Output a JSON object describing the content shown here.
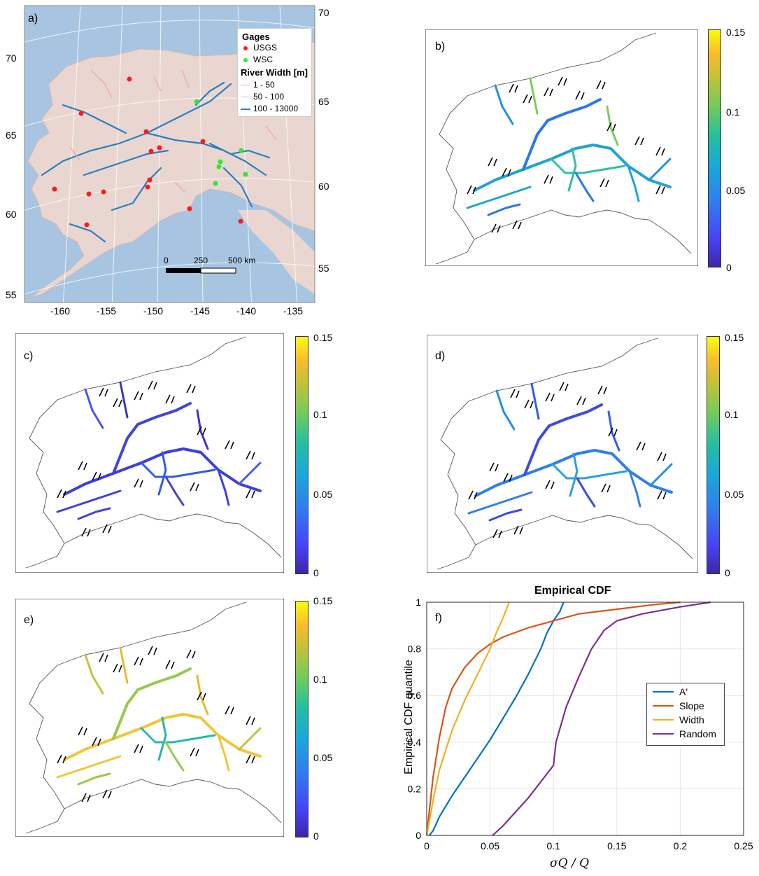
{
  "panel_a": {
    "label": "a)",
    "legend": {
      "gages_title": "Gages",
      "usgs": "USGS",
      "wsc": "WSC",
      "width_title": "River Width [m]",
      "w1": "1 - 50",
      "w2": "50 - 100",
      "w3": "100 - 13000"
    },
    "scalebar": {
      "t0": "0",
      "t1": "250",
      "t2": "500 km"
    },
    "lat_left": [
      "70",
      "65",
      "60",
      "55"
    ],
    "lat_right": [
      "70",
      "65",
      "60",
      "55"
    ],
    "lon_bottom": [
      "-160",
      "-155",
      "-150",
      "-145",
      "-140",
      "-135"
    ],
    "colors": {
      "usgs": "#ff1a1a",
      "wsc": "#33e633",
      "water": "#a6c4e0",
      "land": "#e9d4cf"
    }
  },
  "panel_b": {
    "label": "b)"
  },
  "panel_c": {
    "label": "c)"
  },
  "panel_d": {
    "label": "d)"
  },
  "panel_e": {
    "label": "e)"
  },
  "colorbar": {
    "ticks": [
      "0.15",
      "0.1",
      "0.05",
      "0"
    ]
  },
  "panel_f": {
    "label": "f)",
    "chart_data": {
      "type": "line",
      "title": "Empirical CDF",
      "xlabel": "σQ / Q",
      "ylabel": "Empirical CDF quantile",
      "xlim": [
        0,
        0.25
      ],
      "ylim": [
        0,
        1
      ],
      "xticks": [
        "0",
        "0.05",
        "0.1",
        "0.15",
        "0.2",
        "0.25"
      ],
      "yticks": [
        "0",
        "0.2",
        "0.4",
        "0.6",
        "0.8",
        "1"
      ],
      "grid": true,
      "legend_position": "center-right",
      "series": [
        {
          "name": "A'",
          "color": "#0072bd",
          "points": [
            [
              0.002,
              0
            ],
            [
              0.005,
              0.02
            ],
            [
              0.01,
              0.08
            ],
            [
              0.02,
              0.17
            ],
            [
              0.03,
              0.25
            ],
            [
              0.04,
              0.33
            ],
            [
              0.05,
              0.41
            ],
            [
              0.06,
              0.5
            ],
            [
              0.07,
              0.59
            ],
            [
              0.08,
              0.69
            ],
            [
              0.09,
              0.8
            ],
            [
              0.095,
              0.87
            ],
            [
              0.1,
              0.92
            ],
            [
              0.105,
              0.96
            ],
            [
              0.108,
              1.0
            ]
          ]
        },
        {
          "name": "Slope",
          "color": "#d95319",
          "points": [
            [
              0,
              0
            ],
            [
              0.002,
              0.1
            ],
            [
              0.005,
              0.25
            ],
            [
              0.01,
              0.42
            ],
            [
              0.015,
              0.55
            ],
            [
              0.02,
              0.63
            ],
            [
              0.03,
              0.72
            ],
            [
              0.04,
              0.78
            ],
            [
              0.05,
              0.82
            ],
            [
              0.06,
              0.85
            ],
            [
              0.08,
              0.89
            ],
            [
              0.1,
              0.92
            ],
            [
              0.12,
              0.95
            ],
            [
              0.15,
              0.97
            ],
            [
              0.18,
              0.99
            ],
            [
              0.2,
              1.0
            ]
          ]
        },
        {
          "name": "Width",
          "color": "#edb120",
          "points": [
            [
              0,
              0
            ],
            [
              0.005,
              0.15
            ],
            [
              0.01,
              0.28
            ],
            [
              0.02,
              0.45
            ],
            [
              0.03,
              0.58
            ],
            [
              0.04,
              0.69
            ],
            [
              0.05,
              0.8
            ],
            [
              0.055,
              0.87
            ],
            [
              0.06,
              0.93
            ],
            [
              0.065,
              1.0
            ]
          ]
        },
        {
          "name": "Random",
          "color": "#7e2f8e",
          "points": [
            [
              0.052,
              0
            ],
            [
              0.06,
              0.04
            ],
            [
              0.07,
              0.1
            ],
            [
              0.08,
              0.16
            ],
            [
              0.09,
              0.23
            ],
            [
              0.1,
              0.3
            ],
            [
              0.102,
              0.4
            ],
            [
              0.11,
              0.55
            ],
            [
              0.12,
              0.68
            ],
            [
              0.13,
              0.8
            ],
            [
              0.14,
              0.88
            ],
            [
              0.15,
              0.92
            ],
            [
              0.17,
              0.95
            ],
            [
              0.2,
              0.98
            ],
            [
              0.224,
              1.0
            ]
          ]
        }
      ]
    }
  }
}
